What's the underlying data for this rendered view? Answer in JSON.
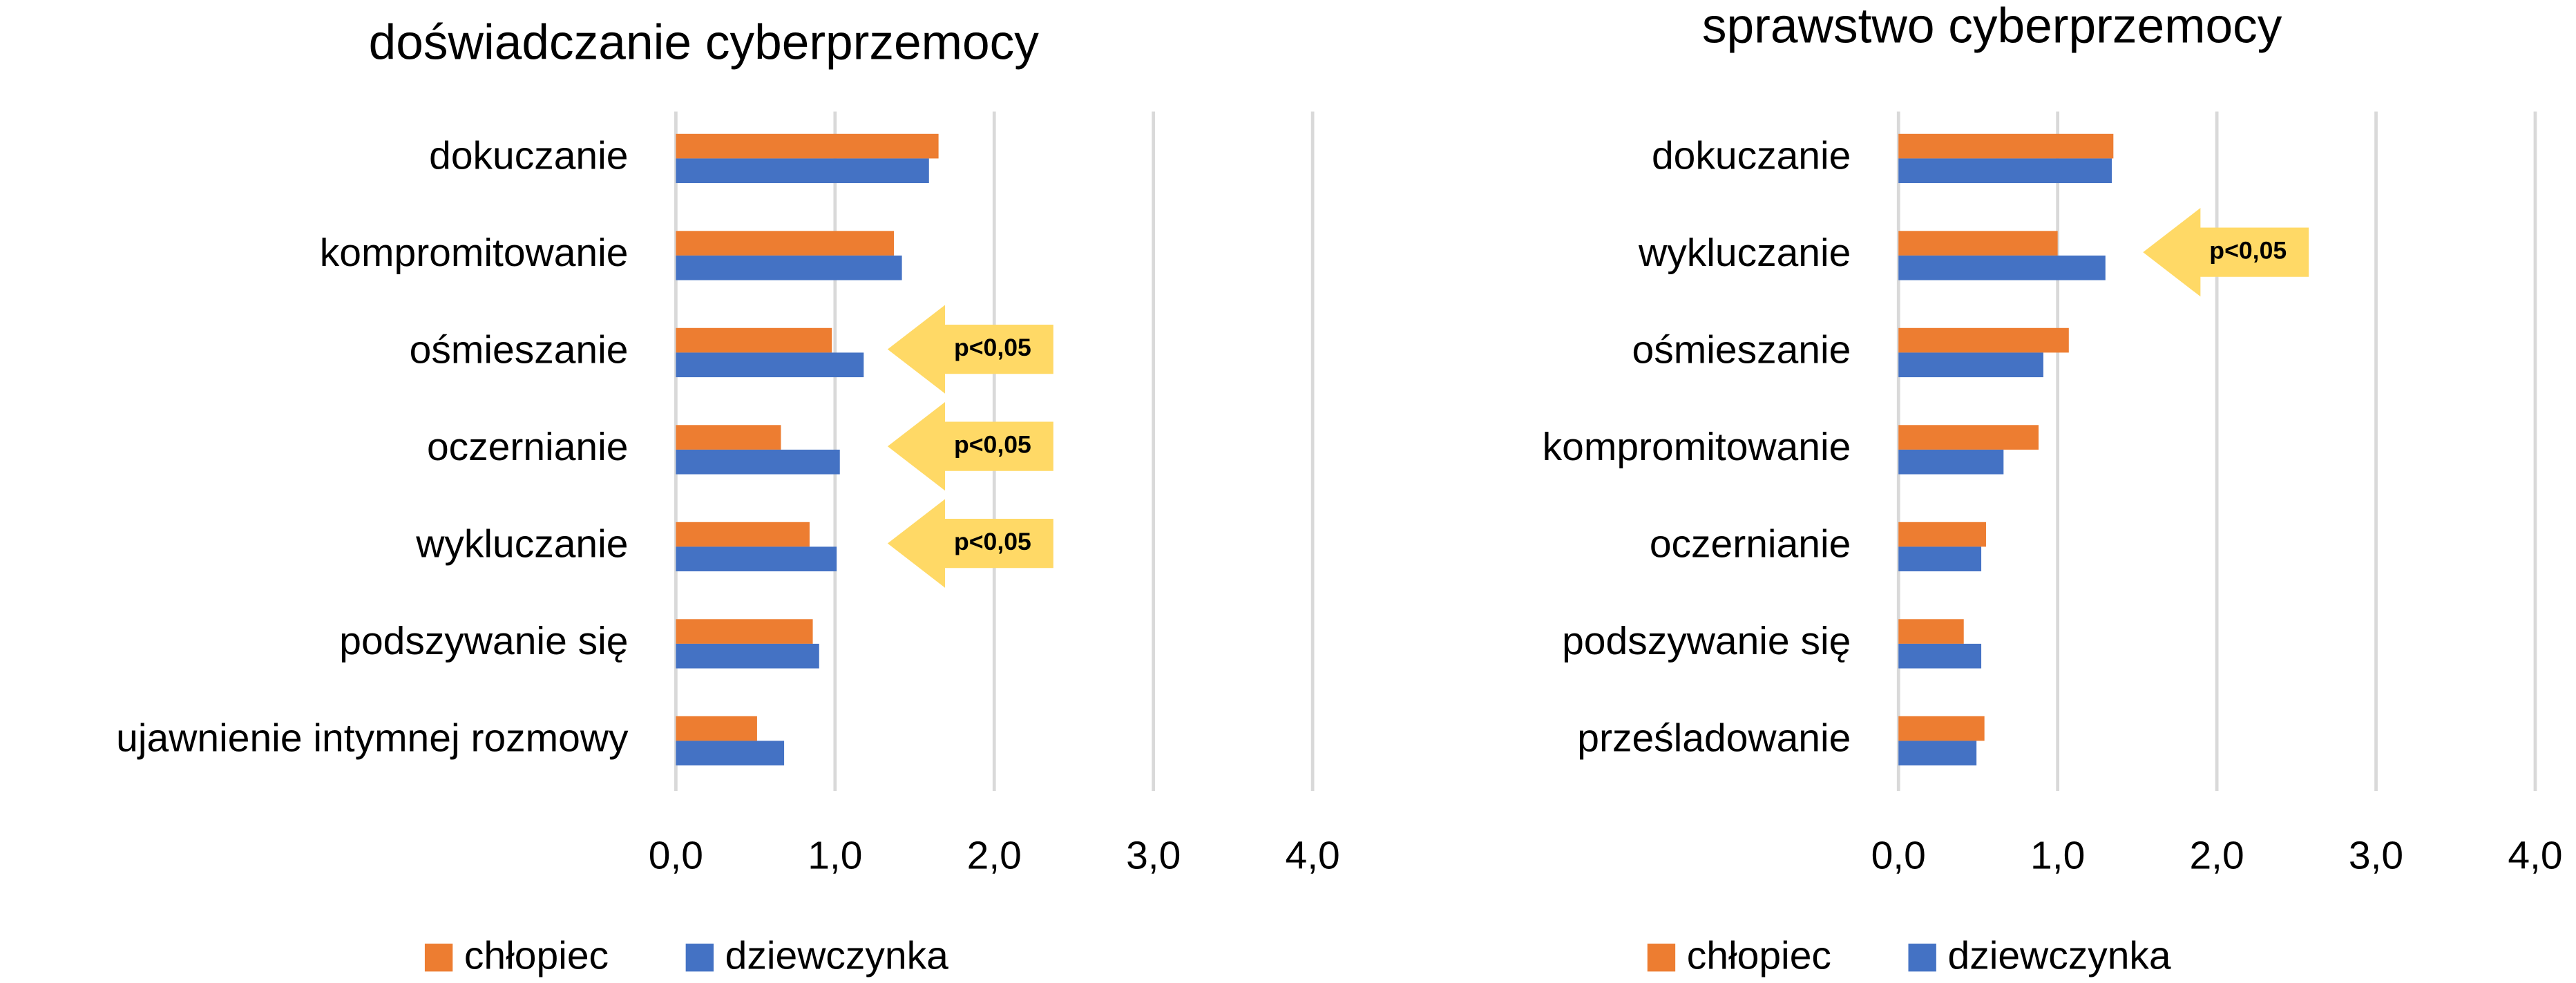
{
  "chart_data": [
    {
      "type": "hbar",
      "title": "doświadczanie cyberprzemocy",
      "categories": [
        "dokuczanie",
        "kompromitowanie",
        "ośmieszanie",
        "oczernianie",
        "wykluczanie",
        "podszywanie się",
        "ujawnienie intymnej rozmowy"
      ],
      "series": [
        {
          "name": "chłopiec",
          "color": "#ed7d31",
          "values": [
            1.65,
            1.37,
            0.98,
            0.66,
            0.84,
            0.86,
            0.51
          ]
        },
        {
          "name": "dziewczynka",
          "color": "#4472c4",
          "values": [
            1.59,
            1.42,
            1.18,
            1.03,
            1.01,
            0.9,
            0.68
          ]
        }
      ],
      "xlim": [
        0,
        4
      ],
      "xticks": [
        {
          "value": 0,
          "label": "0,0"
        },
        {
          "value": 1,
          "label": "1,0"
        },
        {
          "value": 2,
          "label": "2,0"
        },
        {
          "value": 3,
          "label": "3,0"
        },
        {
          "value": 4,
          "label": "4,0"
        }
      ],
      "grid": true,
      "legend": "bottom",
      "annotations": [
        {
          "text": "p<0,05",
          "category": "ośmieszanie"
        },
        {
          "text": "p<0,05",
          "category": "oczernianie"
        },
        {
          "text": "p<0,05",
          "category": "wykluczanie"
        }
      ]
    },
    {
      "type": "hbar",
      "title": "sprawstwo cyberprzemocy",
      "categories": [
        "dokuczanie",
        "wykluczanie",
        "ośmieszanie",
        "kompromitowanie",
        "oczernianie",
        "podszywanie się",
        "prześladowanie"
      ],
      "series": [
        {
          "name": "chłopiec",
          "color": "#ed7d31",
          "values": [
            1.35,
            1.0,
            1.07,
            0.88,
            0.55,
            0.41,
            0.54
          ]
        },
        {
          "name": "dziewczynka",
          "color": "#4472c4",
          "values": [
            1.34,
            1.3,
            0.91,
            0.66,
            0.52,
            0.52,
            0.49
          ]
        }
      ],
      "xlim": [
        0,
        4
      ],
      "xticks": [
        {
          "value": 0,
          "label": "0,0"
        },
        {
          "value": 1,
          "label": "1,0"
        },
        {
          "value": 2,
          "label": "2,0"
        },
        {
          "value": 3,
          "label": "3,0"
        },
        {
          "value": 4,
          "label": "4,0"
        }
      ],
      "grid": true,
      "legend": "bottom",
      "annotations": [
        {
          "text": "p<0,05",
          "category": "wykluczanie"
        }
      ]
    }
  ]
}
